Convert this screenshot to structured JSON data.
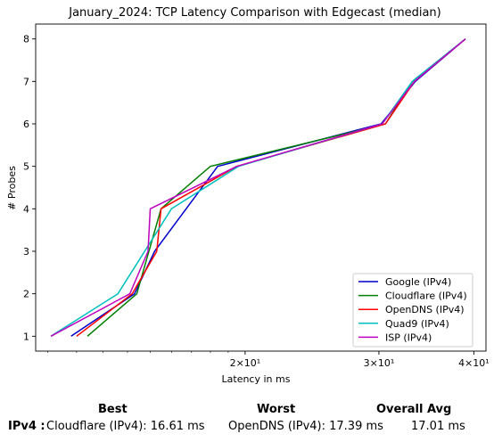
{
  "chart_data": {
    "type": "line",
    "title": "January_2024: TCP Latency Comparison with Edgecast (median)",
    "xlabel": "Latency in ms",
    "ylabel": "# Probes",
    "xscale": "log",
    "xlim": [
      10.6,
      41.5
    ],
    "ylim": [
      0.65,
      8.35
    ],
    "x_ticks": [
      {
        "value": 20,
        "label": "2×10¹"
      },
      {
        "value": 30,
        "label": "3×10¹"
      },
      {
        "value": 40,
        "label": "4×10¹"
      }
    ],
    "y_ticks": [
      1,
      2,
      3,
      4,
      5,
      6,
      7,
      8
    ],
    "grid": false,
    "legend_position": "lower-right",
    "series": [
      {
        "name": "Google (IPv4)",
        "color": "#0000cc",
        "x": [
          11.8,
          14.3,
          15.2,
          18.4,
          30.2,
          33.5,
          39.0
        ],
        "y": [
          1,
          2,
          3,
          5,
          6,
          7,
          8
        ]
      },
      {
        "name": "Cloudflare (IPv4)",
        "color": "#007f00",
        "x": [
          12.4,
          14.4,
          15.5,
          18.0,
          30.6,
          33.2,
          39.0
        ],
        "y": [
          1,
          2,
          4,
          5,
          6,
          7,
          8
        ]
      },
      {
        "name": "OpenDNS (IPv4)",
        "color": "#ff0000",
        "x": [
          12.0,
          14.2,
          15.3,
          15.5,
          19.5,
          30.6,
          33.4,
          39.0
        ],
        "y": [
          1,
          2,
          3,
          4,
          5,
          6,
          7,
          8
        ]
      },
      {
        "name": "Quad9 (IPv4)",
        "color": "#00bfbf",
        "x": [
          11.1,
          13.6,
          16.0,
          19.6,
          30.3,
          33.2,
          39.0
        ],
        "y": [
          1,
          2,
          4,
          5,
          6,
          7,
          8
        ]
      },
      {
        "name": "ISP (IPv4)",
        "color": "#bf00bf",
        "x": [
          11.1,
          14.1,
          14.9,
          15.0,
          19.5,
          30.3,
          33.4,
          39.0
        ],
        "y": [
          1,
          2,
          3,
          4,
          5,
          6,
          7,
          8
        ]
      }
    ]
  },
  "summary": {
    "headers": {
      "best": "Best",
      "worst": "Worst",
      "avg": "Overall Avg"
    },
    "rows": [
      {
        "label": "IPv4 :",
        "best": "Cloudflare (IPv4): 16.61 ms",
        "worst": "OpenDNS (IPv4): 17.39 ms",
        "avg": "17.01 ms"
      }
    ]
  }
}
